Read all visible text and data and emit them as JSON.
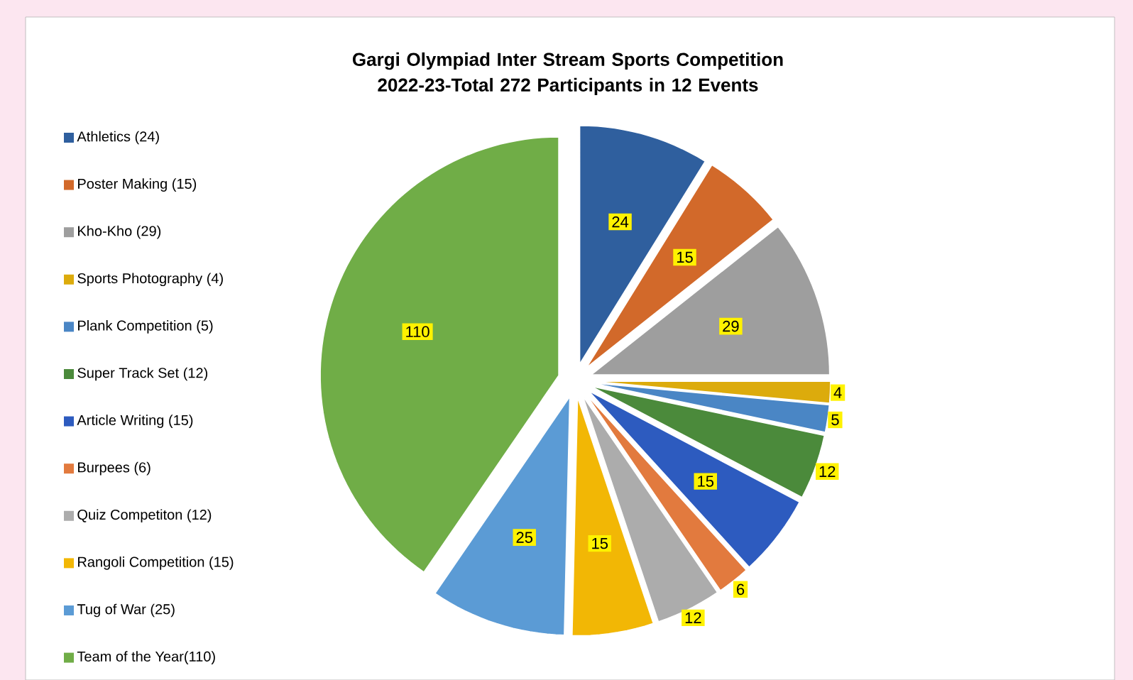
{
  "chart_data": {
    "type": "pie",
    "title": "Gargi Olympiad Inter Stream Sports Competition 2022-23-Total 272 Participants in 12 Events",
    "categories": [
      "Athletics (24)",
      "Poster Making (15)",
      "Kho-Kho (29)",
      "Sports Photography (4)",
      "Plank Competition (5)",
      "Super Track Set (12)",
      "Article Writing (15)",
      "Burpees (6)",
      "Quiz Competiton (12)",
      "Rangoli Competition (15)",
      "Tug of War (25)",
      "Team of the Year(110)"
    ],
    "values": [
      24,
      15,
      29,
      4,
      5,
      12,
      15,
      6,
      12,
      15,
      25,
      110
    ],
    "colors": [
      "#2f5f9e",
      "#d2692a",
      "#9e9e9e",
      "#dcab0c",
      "#4a86c5",
      "#4b8a3b",
      "#2d5bbf",
      "#e27a3e",
      "#acacac",
      "#f2b705",
      "#5b9bd5",
      "#70ad47"
    ],
    "data_labels": true,
    "legend": "left"
  }
}
